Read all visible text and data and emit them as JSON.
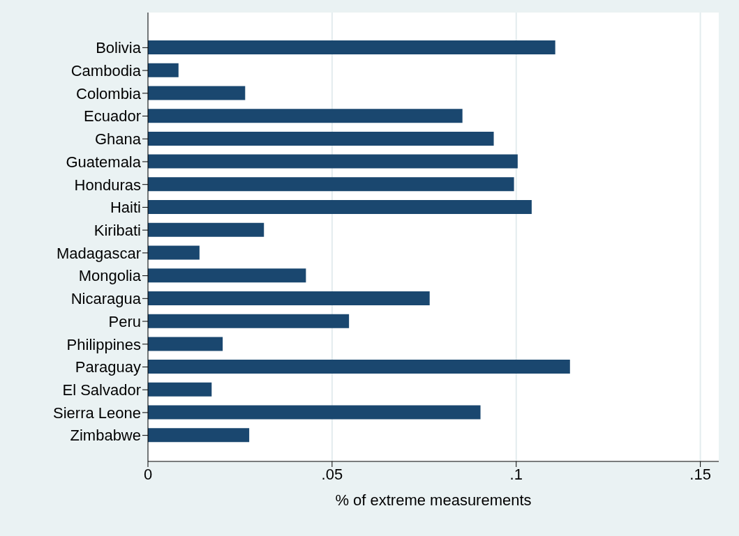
{
  "chart_data": {
    "type": "bar",
    "orientation": "horizontal",
    "xlabel": "% of extreme measurements",
    "categories": [
      "Bolivia",
      "Cambodia",
      "Colombia",
      "Ecuador",
      "Ghana",
      "Guatemala",
      "Honduras",
      "Haiti",
      "Kiribati",
      "Madagascar",
      "Mongolia",
      "Nicaragua",
      "Peru",
      "Philippines",
      "Paraguay",
      "El Salvador",
      "Sierra Leone",
      "Zimbabwe"
    ],
    "values": [
      0.1106,
      0.0083,
      0.0264,
      0.0854,
      0.0939,
      0.1004,
      0.0994,
      0.1042,
      0.0315,
      0.014,
      0.0429,
      0.0765,
      0.0546,
      0.0203,
      0.1146,
      0.0173,
      0.0903,
      0.0275
    ],
    "color": "#1a476f",
    "xlim": [
      0,
      0.155
    ],
    "xticks": [
      0,
      {
        "value": 0.05,
        "label": ".05"
      },
      {
        "value": 0.1,
        "label": ".1"
      },
      {
        "value": 0.15,
        "label": ".15"
      }
    ],
    "grid": "x"
  }
}
